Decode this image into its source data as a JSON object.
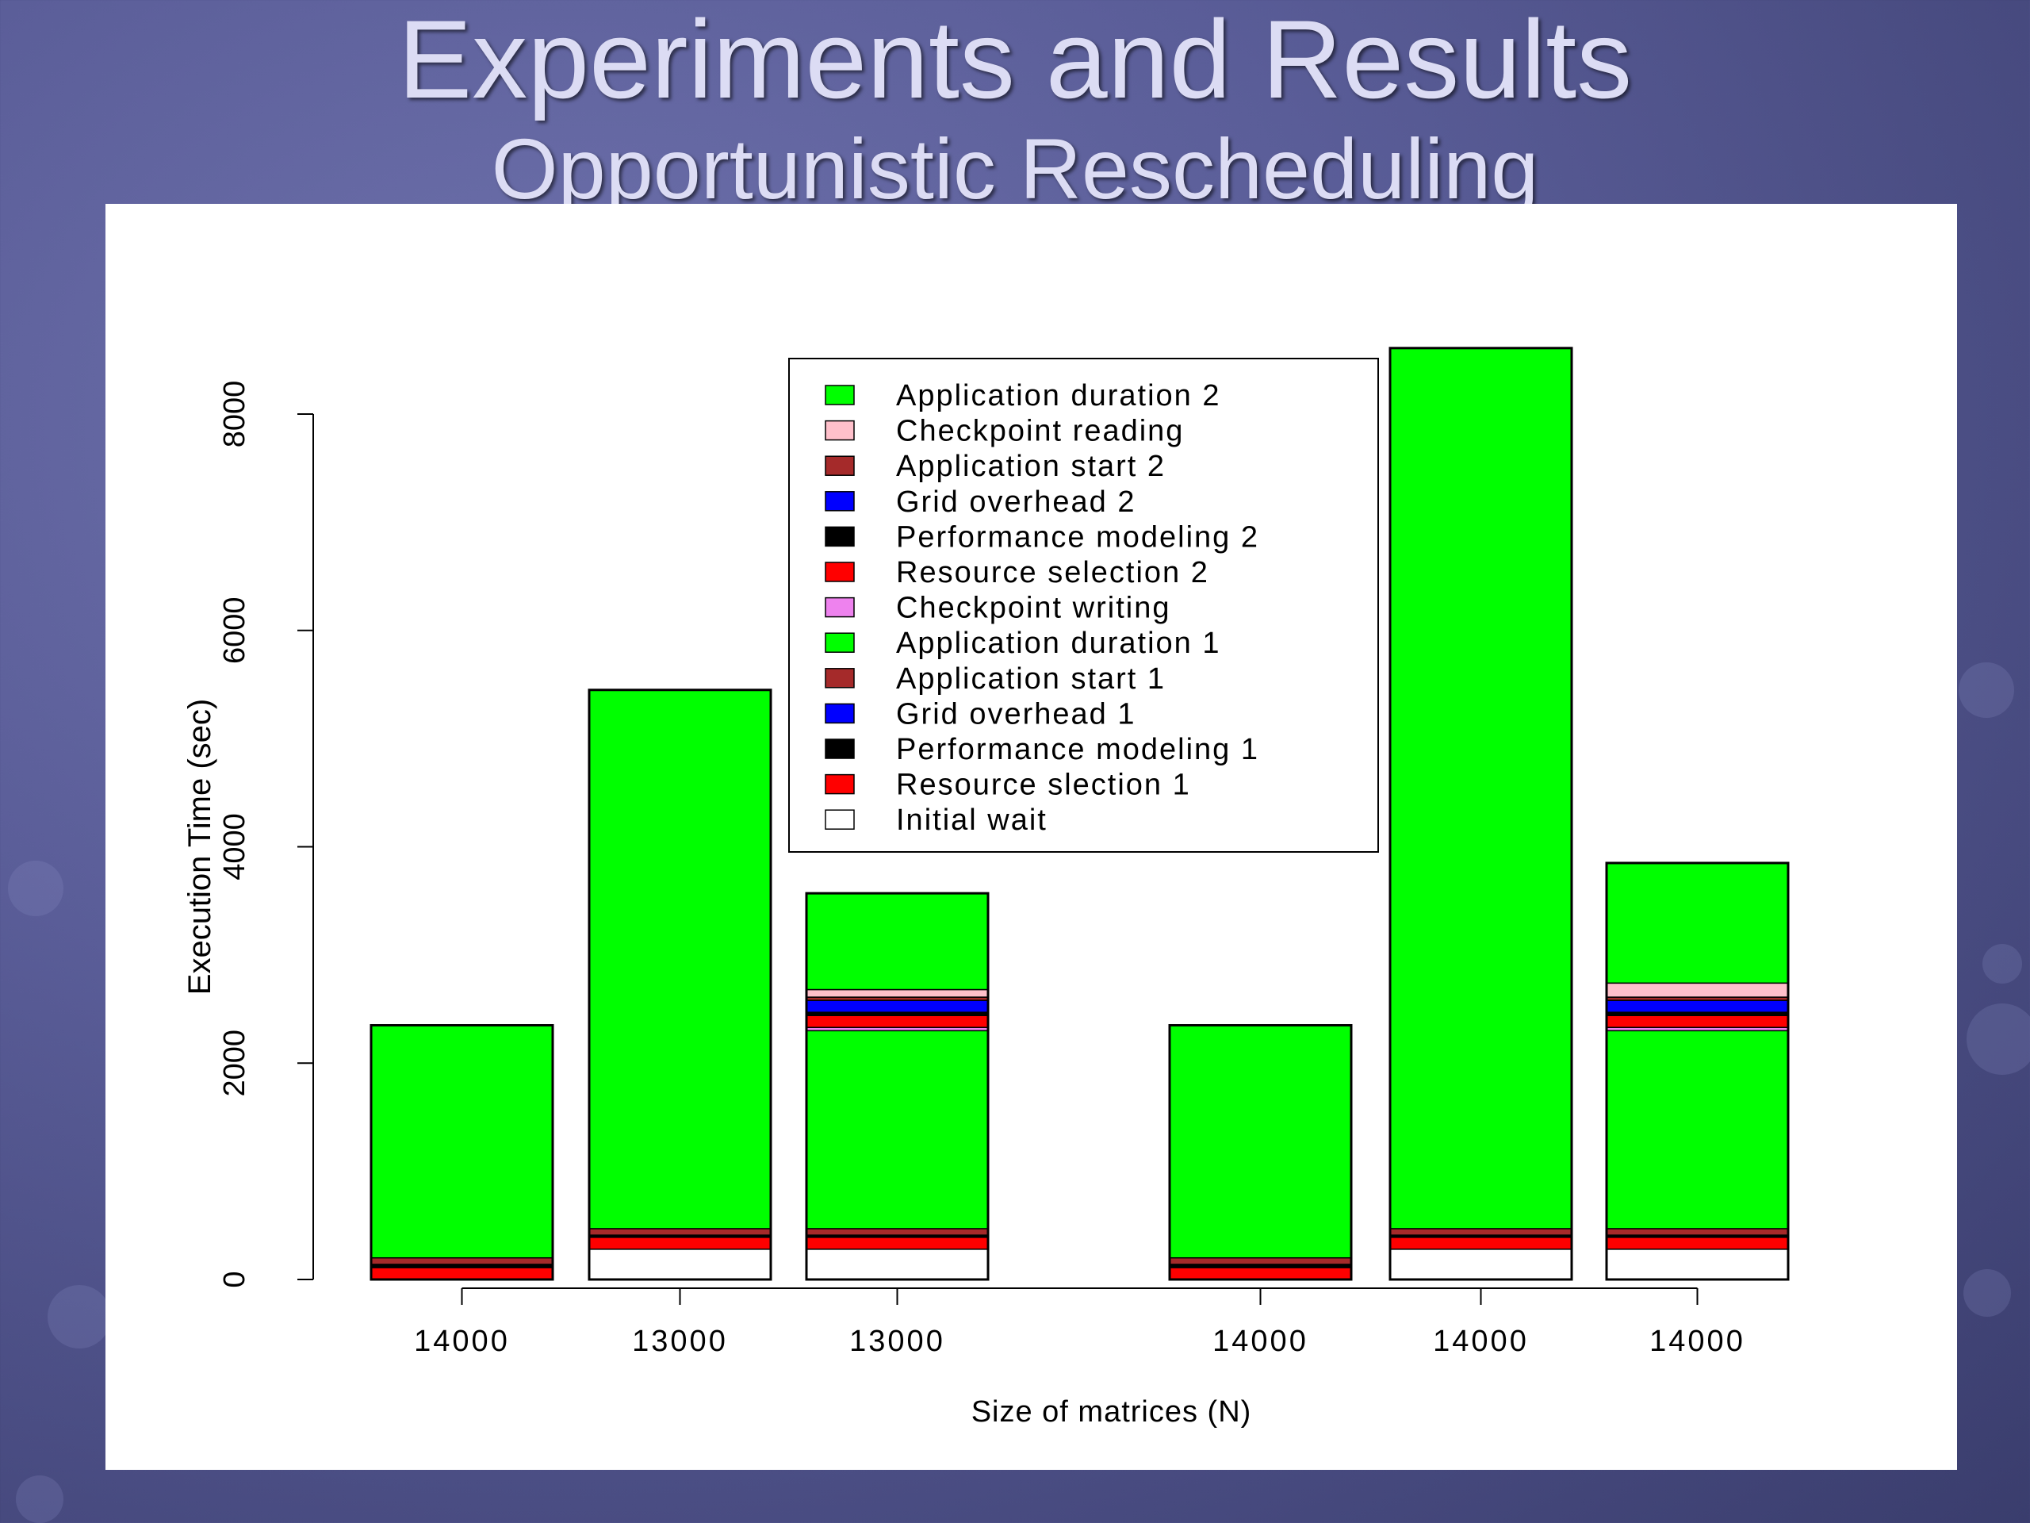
{
  "slide": {
    "title": "Experiments and Results",
    "subtitle": "Opportunistic Rescheduling"
  },
  "chart_data": {
    "type": "bar",
    "stacked": true,
    "title": "",
    "xlabel": "Size of matrices (N)",
    "ylabel": "Execution Time (sec)",
    "ylim": [
      0,
      8000
    ],
    "yticks": [
      0,
      2000,
      4000,
      6000,
      8000
    ],
    "categories": [
      "14000",
      "13000",
      "13000",
      "14000",
      "14000",
      "14000"
    ],
    "legend_position": "top-center",
    "series": [
      {
        "name": "Initial wait",
        "color": "#ffffff",
        "values": [
          0,
          280,
          280,
          0,
          280,
          280
        ]
      },
      {
        "name": "Resource slection 1",
        "color": "#ff0000",
        "values": [
          110,
          110,
          110,
          110,
          110,
          110
        ]
      },
      {
        "name": "Performance modeling 1",
        "color": "#000000",
        "values": [
          30,
          20,
          20,
          30,
          20,
          20
        ]
      },
      {
        "name": "Grid overhead 1",
        "color": "#0000ff",
        "values": [
          0,
          0,
          0,
          0,
          0,
          0
        ]
      },
      {
        "name": "Application start 1",
        "color": "#a52a2a",
        "values": [
          60,
          60,
          60,
          60,
          60,
          60
        ]
      },
      {
        "name": "Application duration 1",
        "color": "#00ff00",
        "values": [
          2150,
          4980,
          1830,
          2150,
          8140,
          1830
        ]
      },
      {
        "name": "Checkpoint writing",
        "color": "#ee82ee",
        "values": [
          0,
          0,
          30,
          0,
          0,
          30
        ]
      },
      {
        "name": "Resource selection 2",
        "color": "#ff0000",
        "values": [
          0,
          0,
          110,
          0,
          0,
          110
        ]
      },
      {
        "name": "Performance modeling 2",
        "color": "#000000",
        "values": [
          0,
          0,
          30,
          0,
          0,
          30
        ]
      },
      {
        "name": "Grid overhead 2",
        "color": "#0000ff",
        "values": [
          0,
          0,
          110,
          0,
          0,
          110
        ]
      },
      {
        "name": "Application start 2",
        "color": "#a52a2a",
        "values": [
          0,
          0,
          30,
          0,
          0,
          30
        ]
      },
      {
        "name": "Checkpoint reading",
        "color": "#ffc0cb",
        "values": [
          0,
          0,
          70,
          0,
          0,
          130
        ]
      },
      {
        "name": "Application duration 2",
        "color": "#00ff00",
        "values": [
          0,
          0,
          890,
          0,
          0,
          1110
        ]
      }
    ],
    "legend": [
      {
        "label": "Application duration 2",
        "color": "#00ff00"
      },
      {
        "label": "Checkpoint reading",
        "color": "#ffc0cb"
      },
      {
        "label": "Application start 2",
        "color": "#a52a2a"
      },
      {
        "label": "Grid overhead 2",
        "color": "#0000ff"
      },
      {
        "label": "Performance modeling 2",
        "color": "#000000"
      },
      {
        "label": "Resource selection 2",
        "color": "#ff0000"
      },
      {
        "label": "Checkpoint writing",
        "color": "#ee82ee"
      },
      {
        "label": "Application duration 1",
        "color": "#00ff00"
      },
      {
        "label": "Application start 1",
        "color": "#a52a2a"
      },
      {
        "label": "Grid overhead 1",
        "color": "#0000ff"
      },
      {
        "label": "Performance modeling 1",
        "color": "#000000"
      },
      {
        "label": "Resource slection 1",
        "color": "#ff0000"
      },
      {
        "label": "Initial wait",
        "color": "#ffffff"
      }
    ]
  }
}
